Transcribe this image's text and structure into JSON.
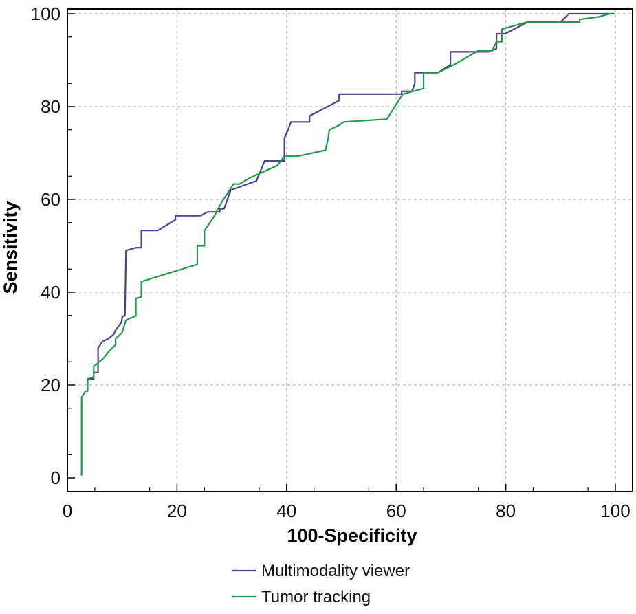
{
  "chart_data": {
    "type": "line",
    "title": "",
    "xlabel": "100-Specificity",
    "ylabel": "Sensitivity",
    "xlim": [
      0,
      100
    ],
    "ylim": [
      0,
      100
    ],
    "xticks": [
      "0",
      "20",
      "40",
      "60",
      "80",
      "100"
    ],
    "yticks": [
      "0",
      "20",
      "40",
      "60",
      "80",
      "100"
    ],
    "grid": true,
    "legend_position": "bottom",
    "series": [
      {
        "name": "Multimodality viewer",
        "color": "#4b3f8f",
        "x": [
          3.7,
          3.7,
          4.8,
          4.8,
          5.6,
          5.6,
          6.4,
          7.5,
          8.5,
          8.8,
          9.9,
          10.0,
          10.5,
          10.7,
          12.5,
          13.5,
          13.5,
          16.5,
          19.7,
          19.7,
          24.3,
          25.6,
          27.8,
          27.8,
          28.6,
          29.8,
          34.5,
          36.0,
          39.6,
          39.6,
          40.2,
          40.8,
          44.2,
          44.2,
          49.6,
          49.6,
          61.0,
          61.0,
          62.9,
          63.4,
          63.4,
          64.9,
          67.6,
          69.9,
          69.9,
          76.8,
          78.3,
          78.3,
          79.9,
          84.0,
          90.0,
          91.5,
          99.0,
          99.8
        ],
        "y": [
          20.7,
          21.3,
          21.3,
          22.7,
          22.7,
          28.0,
          29.4,
          30.0,
          31.0,
          31.8,
          33.6,
          34.7,
          35.0,
          49.0,
          49.6,
          49.6,
          53.3,
          53.3,
          55.6,
          56.5,
          56.5,
          57.3,
          57.3,
          58.0,
          58.0,
          62.0,
          64.0,
          68.3,
          68.3,
          73.2,
          74.8,
          76.7,
          76.7,
          78.0,
          81.3,
          82.7,
          82.7,
          83.3,
          83.3,
          85.0,
          87.3,
          87.3,
          87.3,
          89.0,
          91.8,
          91.8,
          92.5,
          95.7,
          95.7,
          98.2,
          98.2,
          100.0,
          100.0,
          100.0
        ]
      },
      {
        "name": "Tumor tracking",
        "color": "#1f9a4a",
        "x": [
          2.6,
          2.6,
          3.3,
          3.7,
          3.7,
          4.8,
          4.8,
          6.6,
          7.6,
          8.8,
          8.8,
          10.0,
          10.5,
          10.7,
          12.5,
          12.5,
          13.5,
          13.5,
          23.7,
          23.7,
          25.0,
          25.0,
          26.6,
          28.1,
          30.3,
          31.4,
          33.4,
          38.3,
          39.6,
          42.0,
          47.1,
          47.6,
          47.8,
          49.6,
          50.4,
          58.3,
          61.2,
          65.0,
          65.0,
          67.6,
          70.5,
          74.9,
          77.0,
          77.5,
          78.3,
          79.3,
          79.3,
          83.9,
          93.5,
          93.5,
          96.8,
          99.0,
          99.8
        ],
        "y": [
          0.5,
          17.3,
          18.7,
          18.7,
          21.3,
          21.7,
          24.0,
          25.8,
          27.3,
          28.7,
          30.0,
          31.3,
          33.3,
          34.0,
          34.9,
          38.7,
          39.0,
          42.3,
          46.0,
          50.0,
          50.0,
          53.3,
          56.0,
          59.3,
          63.3,
          63.3,
          64.7,
          67.3,
          69.3,
          69.3,
          70.6,
          73.3,
          75.0,
          76.0,
          76.7,
          77.3,
          82.7,
          83.9,
          87.3,
          87.3,
          89.0,
          92.0,
          92.0,
          92.0,
          94.0,
          94.0,
          96.7,
          98.2,
          98.2,
          98.8,
          99.3,
          100.0,
          100.0
        ]
      }
    ]
  }
}
